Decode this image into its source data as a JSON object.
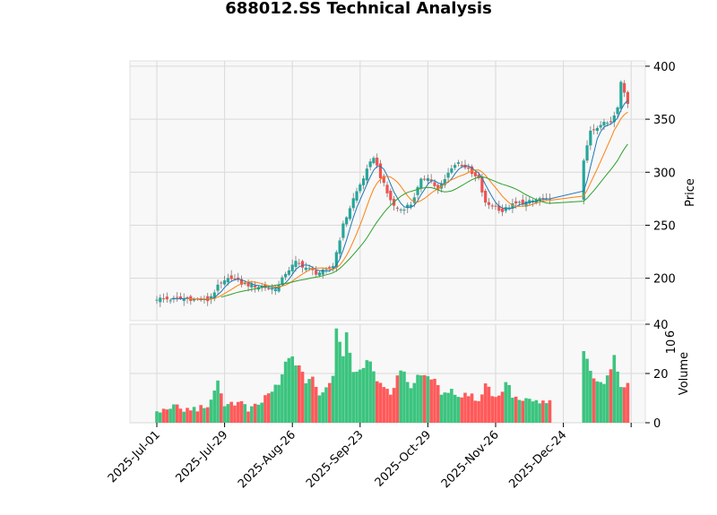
{
  "chart_data": {
    "type": "candlestick",
    "title": "688012.SS Technical Analysis",
    "x_tick_labels": [
      "2025-Jul-01",
      "2025-Jul-29",
      "2025-Aug-26",
      "2025-Sep-23",
      "2025-Oct-29",
      "2025-Nov-26",
      "2025-Dec-24"
    ],
    "price_panel": {
      "ylabel": "Price",
      "ylim": [
        160,
        405
      ],
      "yticks": [
        200,
        250,
        300,
        350,
        400
      ],
      "grid": true,
      "background": "#f8f8f8"
    },
    "volume_panel": {
      "ylabel": "Volume",
      "ylabel_exponent": "10^6",
      "ylim": [
        0,
        40
      ],
      "yticks": [
        0,
        20,
        40
      ],
      "grid": true,
      "background": "#f8f8f8"
    },
    "colors": {
      "up": "#26a69a",
      "up_volume": "#3cc47f",
      "down": "#ef5350",
      "down_volume": "#ff5a5a",
      "ma_short": "#1f77b4",
      "ma_mid": "#ff7f0e",
      "ma_long": "#2ca02c"
    },
    "close_anchors": [
      [
        0,
        181
      ],
      [
        4,
        180
      ],
      [
        8,
        181
      ],
      [
        12,
        180
      ],
      [
        15,
        179
      ],
      [
        18,
        192
      ],
      [
        22,
        201
      ],
      [
        25,
        195
      ],
      [
        28,
        193
      ],
      [
        31,
        192
      ],
      [
        34,
        190
      ],
      [
        36,
        193
      ],
      [
        38,
        205
      ],
      [
        41,
        215
      ],
      [
        44,
        210
      ],
      [
        47,
        205
      ],
      [
        50,
        207
      ],
      [
        52,
        212
      ],
      [
        55,
        250
      ],
      [
        58,
        275
      ],
      [
        61,
        295
      ],
      [
        64,
        315
      ],
      [
        66,
        296
      ],
      [
        68,
        280
      ],
      [
        70,
        268
      ],
      [
        72,
        265
      ],
      [
        75,
        270
      ],
      [
        78,
        292
      ],
      [
        80,
        296
      ],
      [
        83,
        283
      ],
      [
        85,
        293
      ],
      [
        87,
        305
      ],
      [
        89,
        309
      ],
      [
        91,
        305
      ],
      [
        93,
        298
      ],
      [
        95,
        293
      ],
      [
        97,
        270
      ],
      [
        100,
        268
      ],
      [
        102,
        263
      ],
      [
        104,
        268
      ],
      [
        107,
        271
      ],
      [
        110,
        272
      ],
      [
        113,
        275
      ],
      [
        116,
        273
      ],
      [
        126,
        310
      ],
      [
        128,
        340
      ],
      [
        131,
        345
      ],
      [
        134,
        348
      ],
      [
        136,
        363
      ],
      [
        137,
        385
      ],
      [
        139,
        365
      ]
    ],
    "volume_anchors": [
      [
        0,
        4
      ],
      [
        2,
        5
      ],
      [
        4,
        7
      ],
      [
        8,
        5
      ],
      [
        13,
        6
      ],
      [
        16,
        8
      ],
      [
        18,
        16
      ],
      [
        20,
        8
      ],
      [
        25,
        8
      ],
      [
        27,
        5
      ],
      [
        30,
        7
      ],
      [
        33,
        12
      ],
      [
        36,
        15
      ],
      [
        38,
        24
      ],
      [
        40,
        27
      ],
      [
        42,
        22
      ],
      [
        44,
        17
      ],
      [
        46,
        19
      ],
      [
        48,
        10
      ],
      [
        50,
        14
      ],
      [
        52,
        20
      ],
      [
        53,
        38
      ],
      [
        55,
        28
      ],
      [
        56,
        37
      ],
      [
        58,
        21
      ],
      [
        60,
        22
      ],
      [
        62,
        25
      ],
      [
        63,
        26
      ],
      [
        65,
        18
      ],
      [
        67,
        13
      ],
      [
        69,
        12
      ],
      [
        71,
        19
      ],
      [
        73,
        21
      ],
      [
        75,
        14
      ],
      [
        77,
        20
      ],
      [
        79,
        18
      ],
      [
        81,
        19
      ],
      [
        83,
        14
      ],
      [
        85,
        11
      ],
      [
        87,
        15
      ],
      [
        89,
        10
      ],
      [
        91,
        12
      ],
      [
        93,
        11
      ],
      [
        95,
        9
      ],
      [
        97,
        16
      ],
      [
        99,
        12
      ],
      [
        101,
        10
      ],
      [
        103,
        17
      ],
      [
        105,
        11
      ],
      [
        107,
        9
      ],
      [
        116,
        8
      ],
      [
        126,
        28
      ],
      [
        127,
        26
      ],
      [
        129,
        19
      ],
      [
        131,
        16
      ],
      [
        133,
        18
      ],
      [
        135,
        26
      ],
      [
        137,
        16
      ],
      [
        139,
        15
      ]
    ],
    "gap_days": {
      "start": 117,
      "end": 125
    },
    "ma_windows": [
      5,
      10,
      20
    ]
  }
}
